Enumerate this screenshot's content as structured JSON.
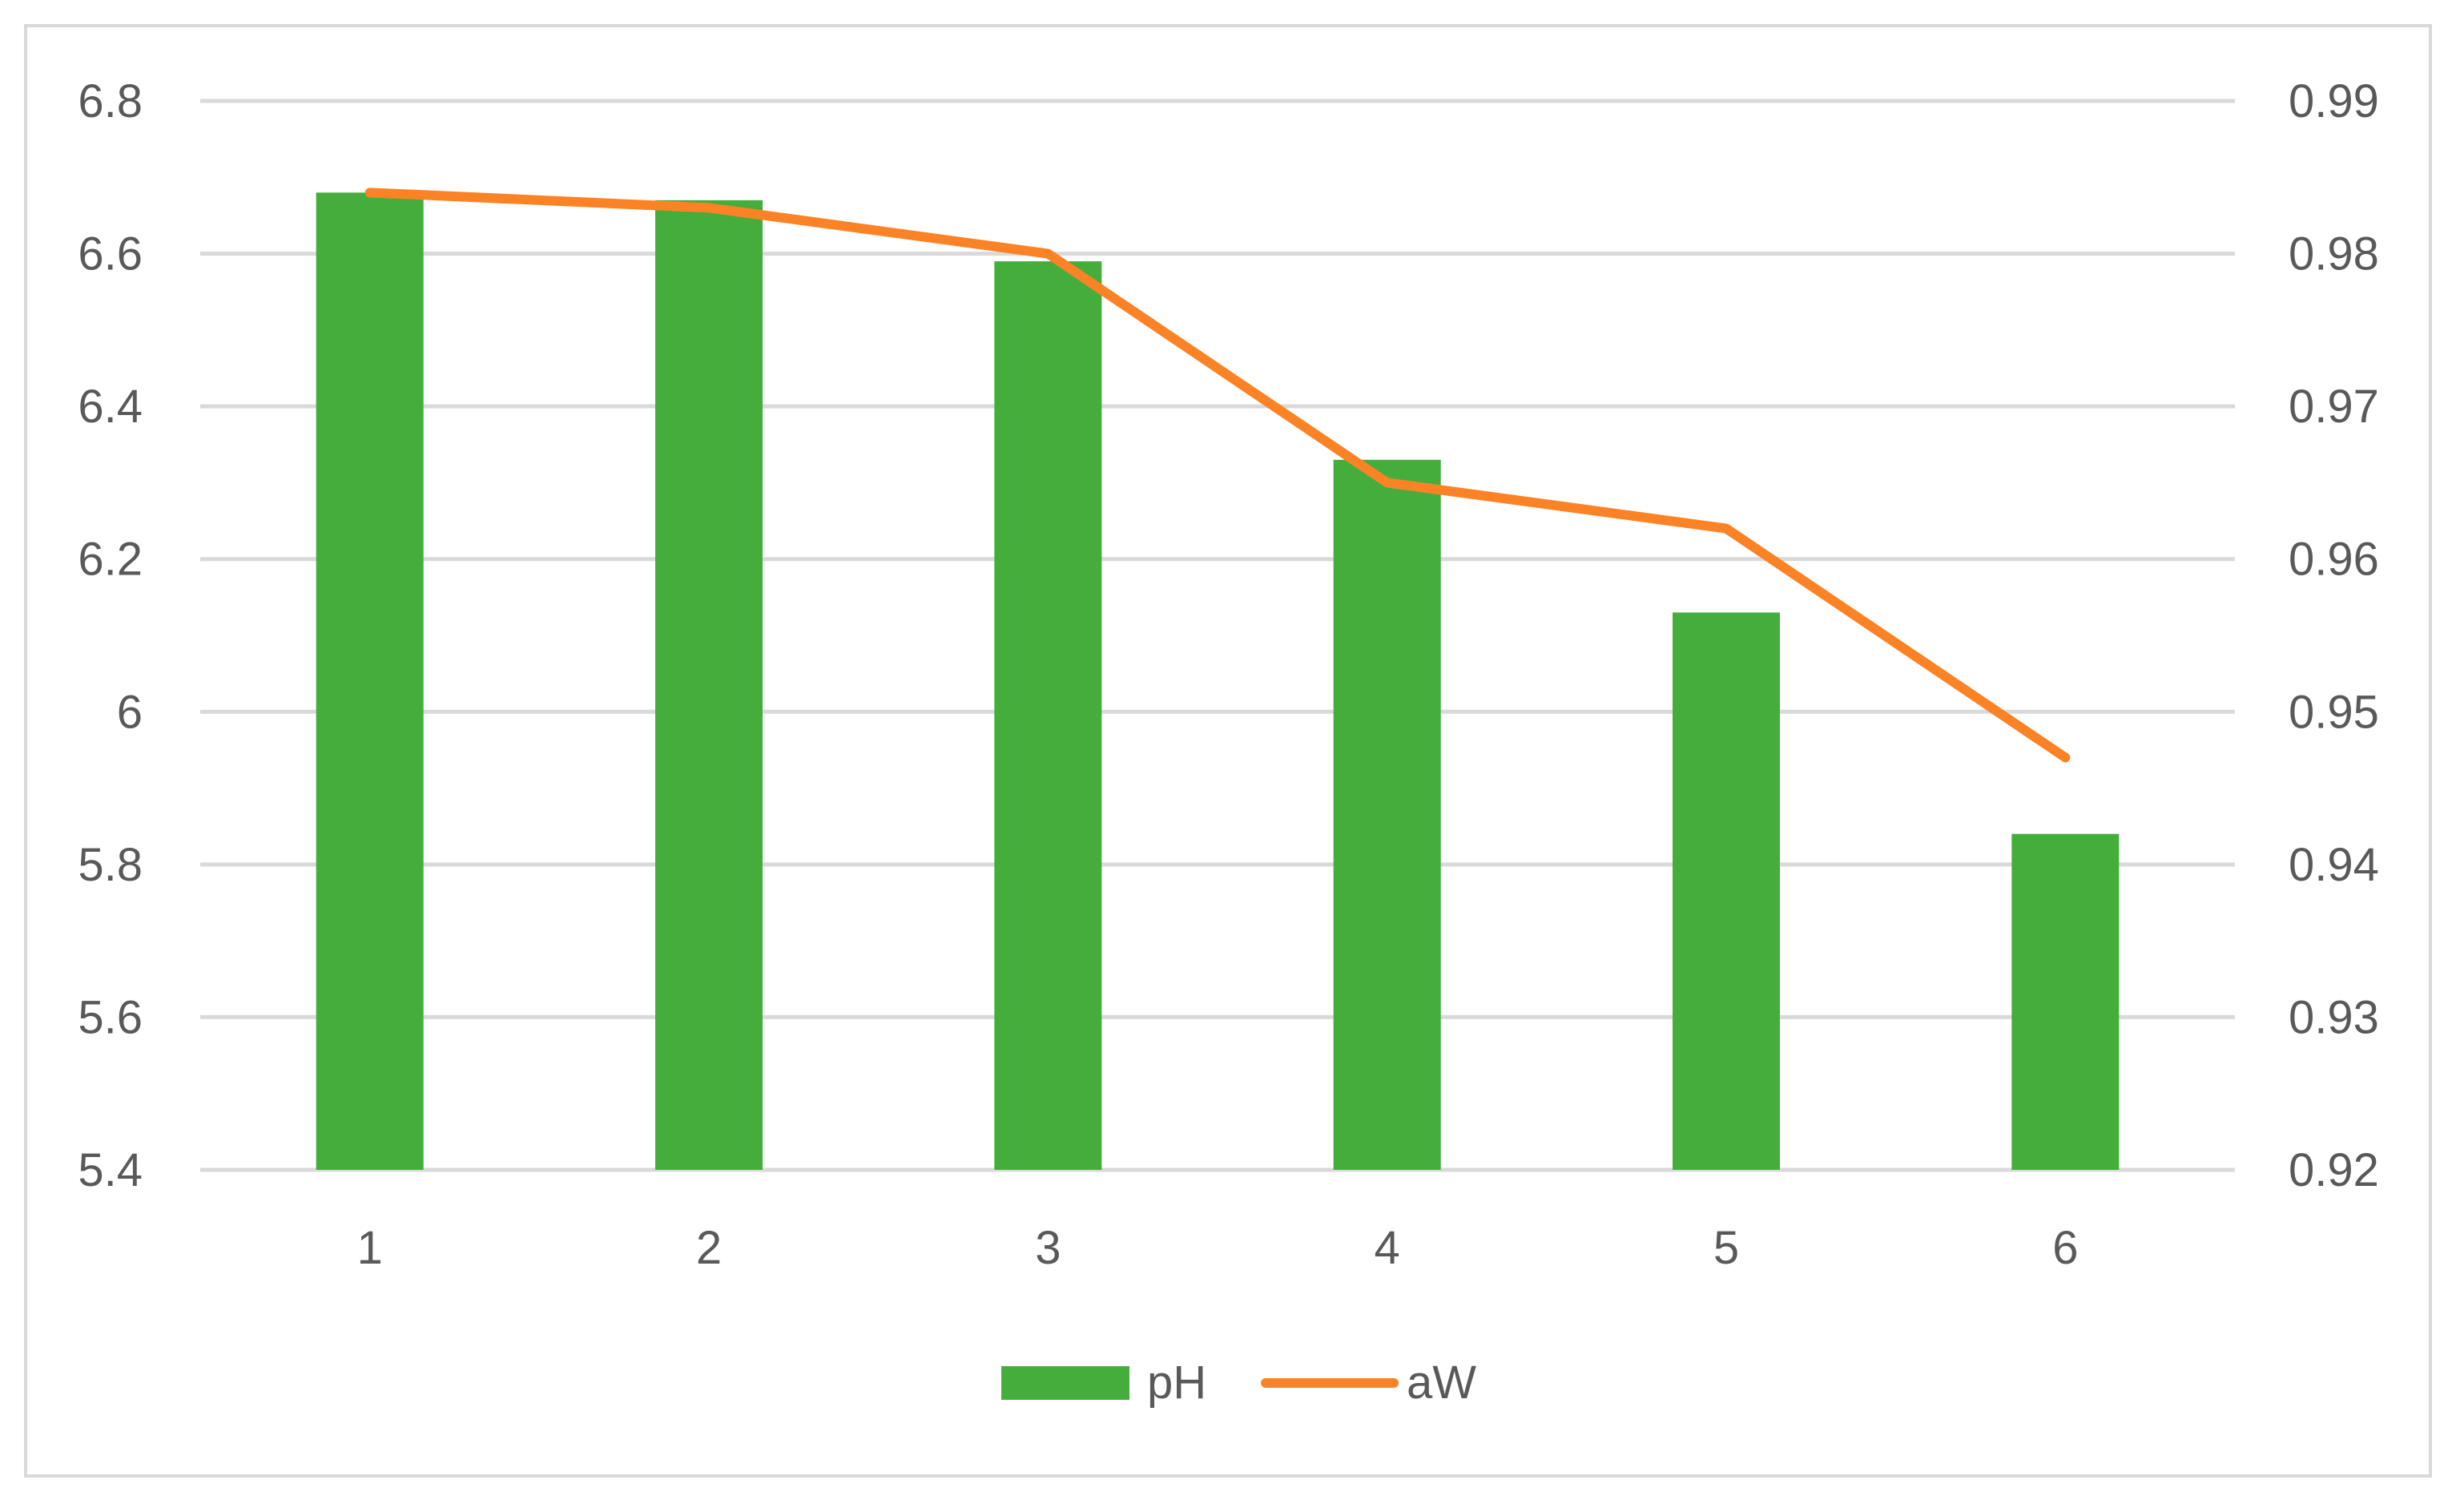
{
  "chart_data": {
    "type": "bar",
    "categories": [
      "1",
      "2",
      "3",
      "4",
      "5",
      "6"
    ],
    "series": [
      {
        "name": "pH",
        "type": "bar",
        "axis": "left",
        "color": "#45ad3c",
        "values": [
          6.68,
          6.67,
          6.59,
          6.33,
          6.13,
          5.84
        ]
      },
      {
        "name": "aW",
        "type": "line",
        "axis": "right",
        "color": "#fb8326",
        "values": [
          0.984,
          0.983,
          0.98,
          0.965,
          0.962,
          0.947
        ]
      }
    ],
    "y_left": {
      "min": 5.4,
      "max": 6.8,
      "ticks": [
        "5.4",
        "5.6",
        "5.8",
        "6",
        "6.2",
        "6.4",
        "6.6",
        "6.8"
      ]
    },
    "y_right": {
      "min": 0.92,
      "max": 0.99,
      "ticks": [
        "0.92",
        "0.93",
        "0.94",
        "0.95",
        "0.96",
        "0.97",
        "0.98",
        "0.99"
      ]
    },
    "title": "",
    "xlabel": "",
    "ylabel": "",
    "grid": true,
    "gridline_color": "#d9d9d9",
    "axis_text_color": "#595959",
    "legend_position": "bottom"
  }
}
